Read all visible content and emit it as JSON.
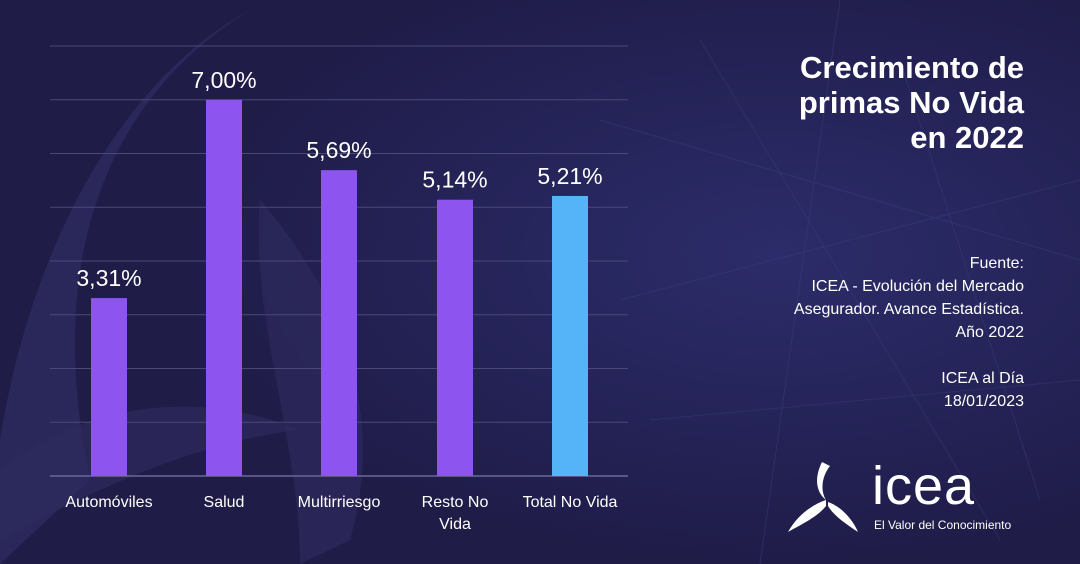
{
  "panel": {
    "title_lines": [
      "Crecimiento de",
      "primas No Vida",
      "en 2022"
    ],
    "source_label": "Fuente:",
    "source_lines": [
      "ICEA - Evolución del Mercado",
      "Asegurador. Avance Estadística.",
      "Año 2022"
    ],
    "footer_lines": [
      "ICEA al Día",
      "18/01/2023"
    ]
  },
  "logo": {
    "wordmark": "icea",
    "tagline": "El Valor del Conocimiento",
    "icon": "icea-tri-blade-logo"
  },
  "colors": {
    "background": "#211f4a",
    "bar": "#8d54f0",
    "bar_highlight": "#55b3f8",
    "gridline": "#4a4876",
    "text": "#ffffff"
  },
  "chart_data": {
    "type": "bar",
    "categories": [
      [
        "Automóviles"
      ],
      [
        "Salud"
      ],
      [
        "Multirriesgo"
      ],
      [
        "Resto No",
        "Vida"
      ],
      [
        "Total No Vida"
      ]
    ],
    "values": [
      3.31,
      7.0,
      5.69,
      5.14,
      5.21
    ],
    "value_labels": [
      "3,31%",
      "7,00%",
      "5,69%",
      "5,14%",
      "5,21%"
    ],
    "highlight_index": 4,
    "ylim": [
      0,
      8
    ],
    "grid": true,
    "ylabel": "",
    "xlabel": ""
  }
}
